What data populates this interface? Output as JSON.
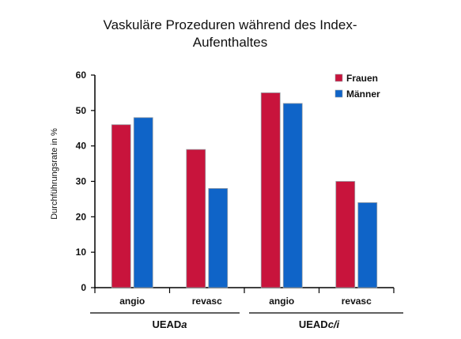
{
  "chart_data": {
    "type": "bar",
    "title_lines": [
      "Vaskuläre Prozeduren während des Index-",
      "Aufenthaltes"
    ],
    "ylabel": "Durchführungsrate in %",
    "xlabel": "",
    "ylim": [
      0,
      60
    ],
    "yticks": [
      0,
      10,
      20,
      30,
      40,
      50,
      60
    ],
    "categories": [
      "angio",
      "revasc",
      "angio",
      "revasc"
    ],
    "groups": [
      {
        "label_main": "UEAD",
        "label_suffix": "a",
        "categories": [
          0,
          1
        ]
      },
      {
        "label_main": "UEAD",
        "label_suffix": "c/i",
        "categories": [
          2,
          3
        ]
      }
    ],
    "series": [
      {
        "name": "Frauen",
        "color": "#c8143c",
        "values": [
          46,
          39,
          55,
          30
        ]
      },
      {
        "name": "Männer",
        "color": "#0f64c8",
        "values": [
          48,
          28,
          52,
          24
        ]
      }
    ],
    "legend_position": "top-right",
    "grid": false
  }
}
